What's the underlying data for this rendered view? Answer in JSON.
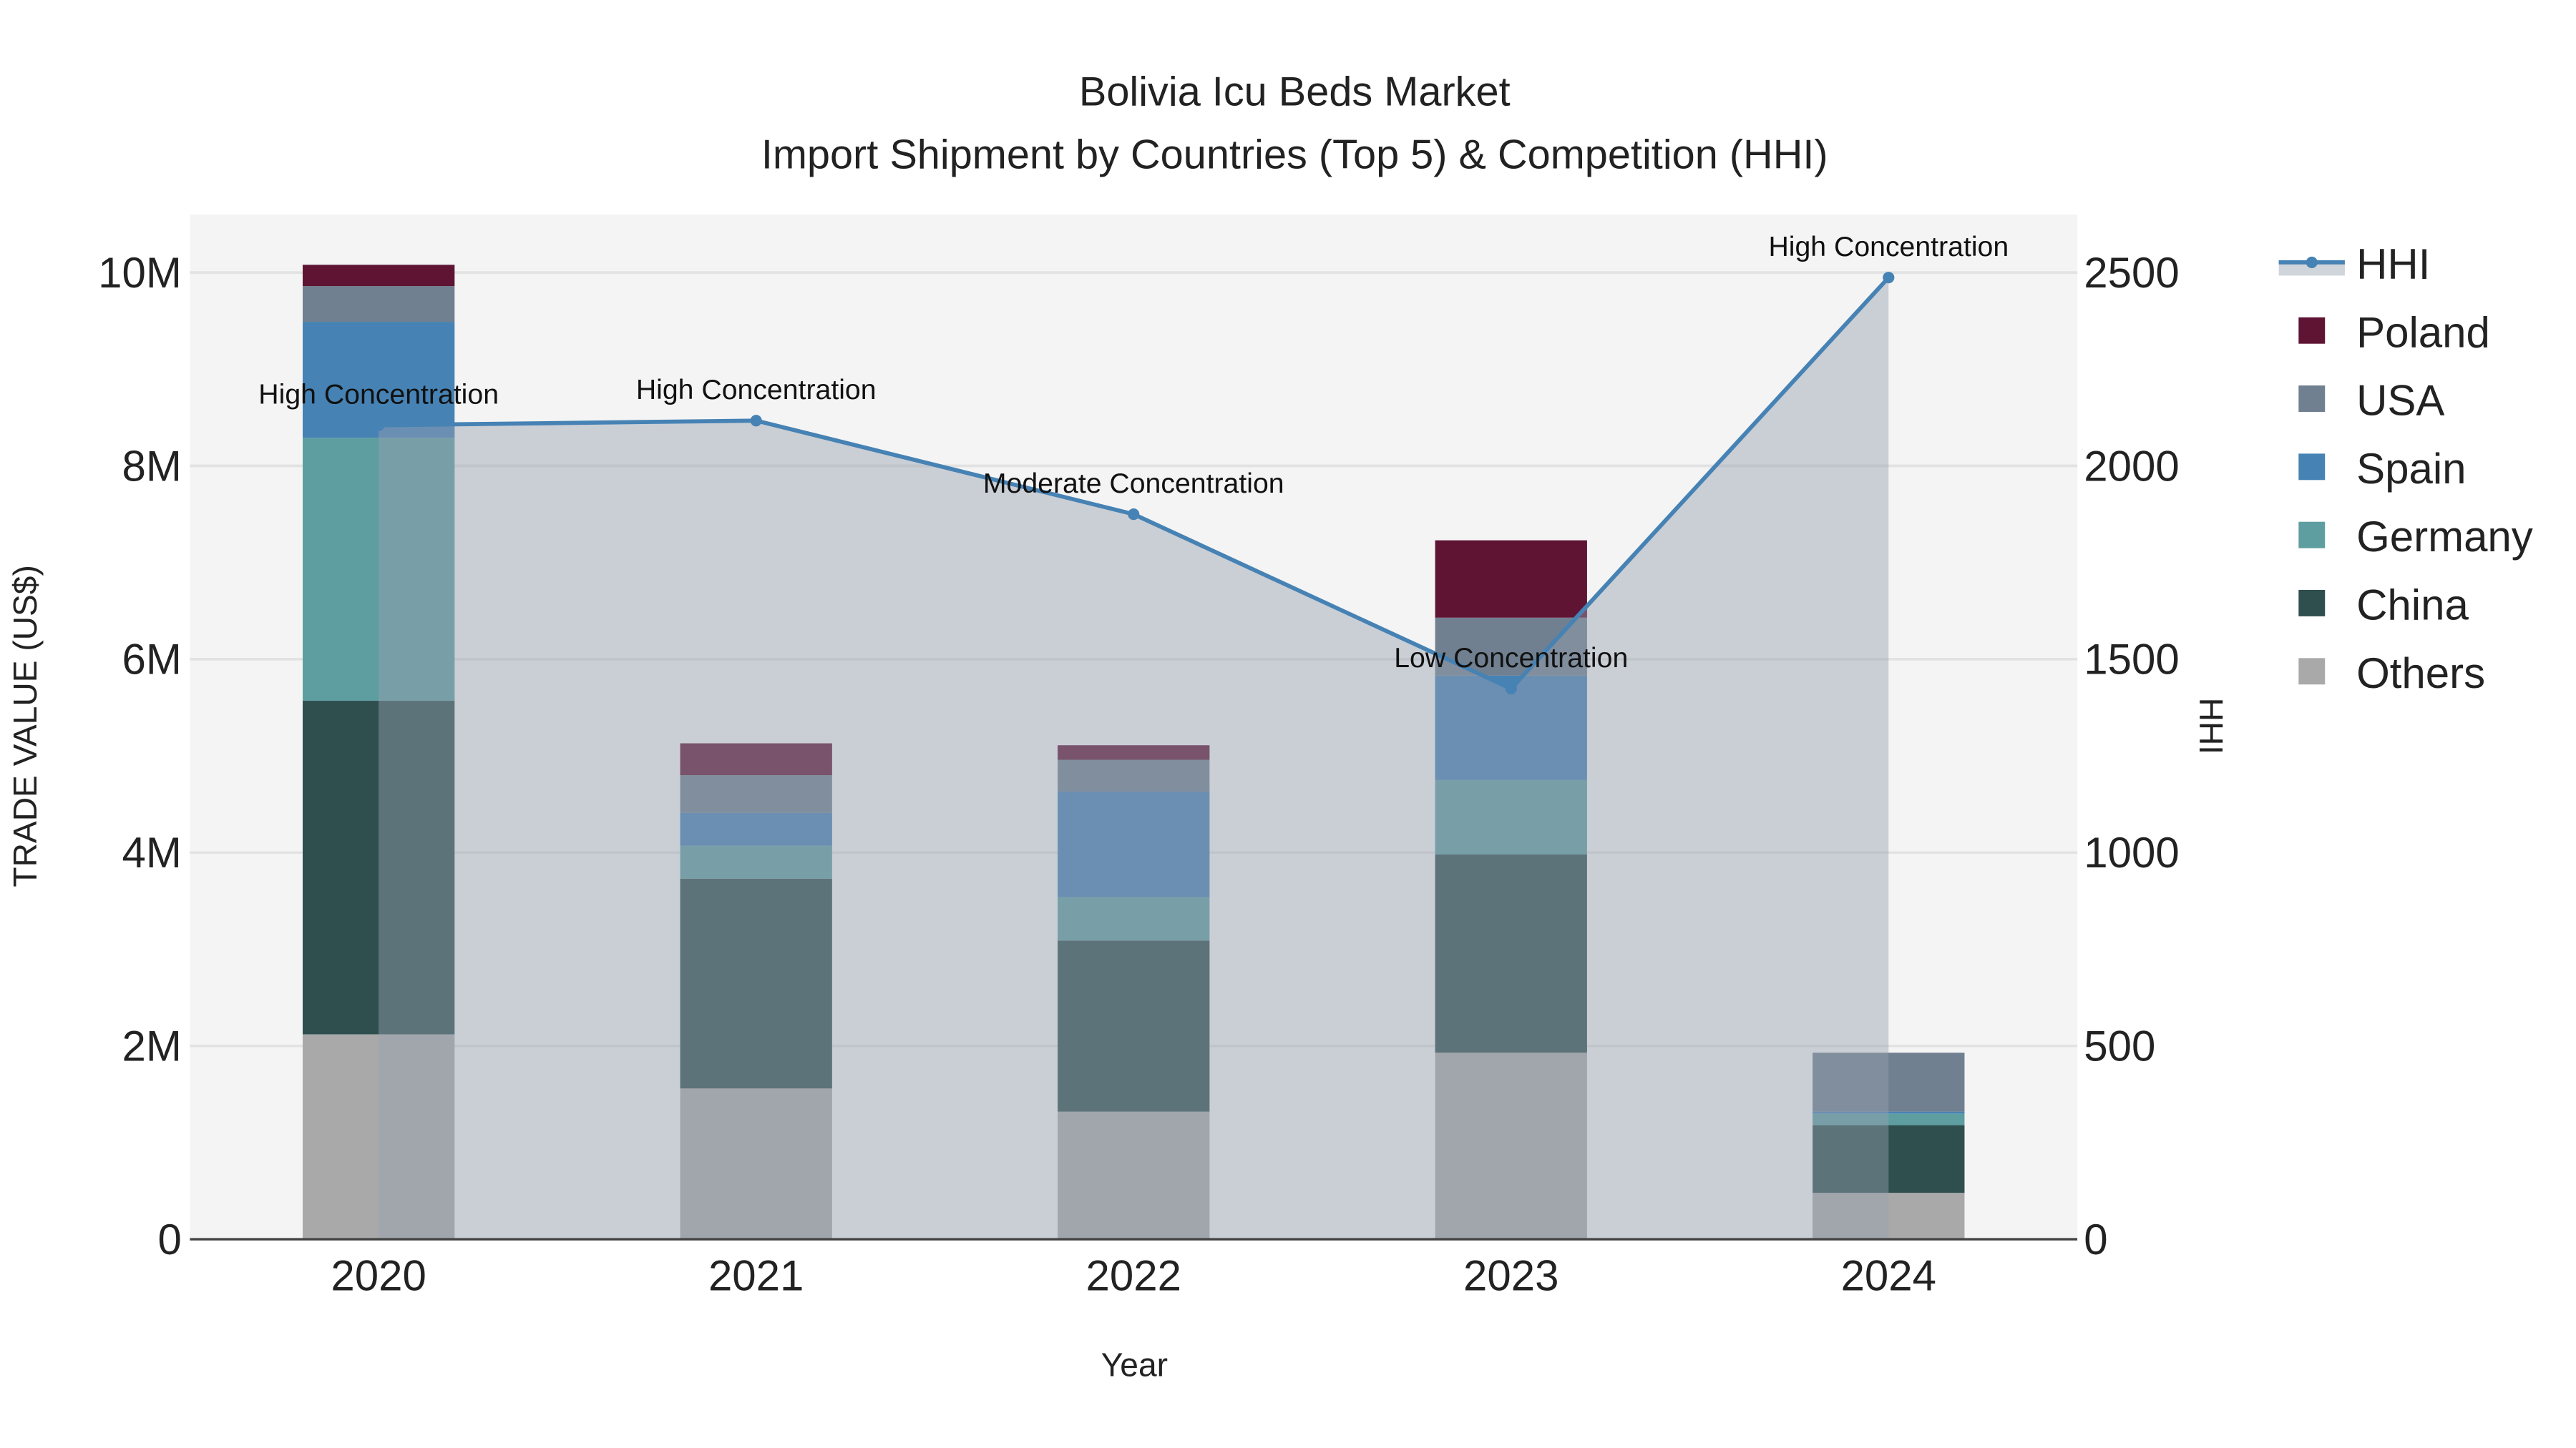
{
  "chart_data": {
    "type": "bar",
    "title": "Bolivia Icu Beds Market",
    "subtitle": "Import Shipment by Countries (Top 5) & Competition (HHI)",
    "xlabel": "Year",
    "ylabel": "TRADE VALUE (US$)",
    "y2label": "HHI",
    "categories": [
      "2020",
      "2021",
      "2022",
      "2023",
      "2024"
    ],
    "ylim": [
      0,
      10600000
    ],
    "y2lim": [
      0,
      2650
    ],
    "yticks": [
      {
        "v": 0,
        "label": "0"
      },
      {
        "v": 2000000,
        "label": "2M"
      },
      {
        "v": 4000000,
        "label": "4M"
      },
      {
        "v": 6000000,
        "label": "6M"
      },
      {
        "v": 8000000,
        "label": "8M"
      },
      {
        "v": 10000000,
        "label": "10M"
      }
    ],
    "y2ticks": [
      {
        "v": 0,
        "label": "0"
      },
      {
        "v": 500,
        "label": "500"
      },
      {
        "v": 1000,
        "label": "1000"
      },
      {
        "v": 1500,
        "label": "1500"
      },
      {
        "v": 2000,
        "label": "2000"
      },
      {
        "v": 2500,
        "label": "2500"
      }
    ],
    "series": [
      {
        "name": "Others",
        "color": "#a9a9a9",
        "values": [
          2120000,
          1560000,
          1320000,
          1930000,
          480000
        ]
      },
      {
        "name": "China",
        "color": "#2f4f4f",
        "values": [
          3450000,
          2170000,
          1770000,
          2050000,
          700000
        ]
      },
      {
        "name": "Germany",
        "color": "#5f9ea0",
        "values": [
          2720000,
          340000,
          450000,
          770000,
          120000
        ]
      },
      {
        "name": "Spain",
        "color": "#4682b4",
        "values": [
          1200000,
          340000,
          1090000,
          1080000,
          20000
        ]
      },
      {
        "name": "USA",
        "color": "#708090",
        "values": [
          370000,
          390000,
          330000,
          600000,
          610000
        ]
      },
      {
        "name": "Poland",
        "color": "#5f1434",
        "values": [
          220000,
          330000,
          150000,
          800000,
          0
        ]
      }
    ],
    "hhi": {
      "name": "HHI",
      "color": "#4682b4",
      "values": [
        2105,
        2117,
        1875,
        1424,
        2487
      ],
      "annotations": [
        "High Concentration",
        "High Concentration",
        "Moderate Concentration",
        "Low Concentration",
        "High Concentration"
      ]
    },
    "legend": {
      "position": "right",
      "order": [
        "HHI",
        "Poland",
        "USA",
        "Spain",
        "Germany",
        "China",
        "Others"
      ]
    },
    "grid": true
  }
}
